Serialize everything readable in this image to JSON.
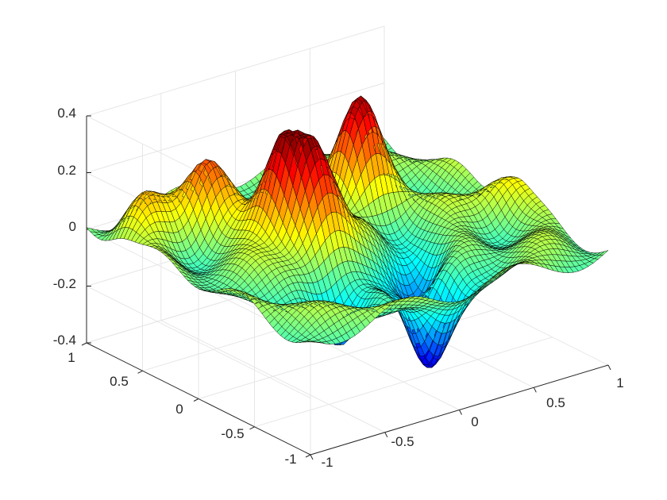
{
  "chart_data": {
    "type": "surface",
    "title": "",
    "xlabel": "",
    "ylabel": "",
    "zlabel": "",
    "xlim": [
      -1,
      1
    ],
    "ylim": [
      -1,
      1
    ],
    "zlim": [
      -0.4,
      0.4
    ],
    "x_ticks": [
      "-1",
      "-0.5",
      "0",
      "0.5",
      "1"
    ],
    "y_ticks": [
      "-1",
      "-0.5",
      "0",
      "0.5",
      "1"
    ],
    "z_ticks": [
      "-0.4",
      "-0.2",
      "0",
      "0.2",
      "0.4"
    ],
    "grid": true,
    "colormap": "jet",
    "edge_color": "#000000",
    "grid_resolution": 61,
    "surface_peaks": [
      {
        "x": -0.3,
        "y": 0.15,
        "z": 0.4
      },
      {
        "x": 0.35,
        "y": 0.35,
        "z": 0.33
      },
      {
        "x": -0.5,
        "y": 0.6,
        "z": 0.27
      },
      {
        "x": -0.25,
        "y": -0.05,
        "z": 0.3
      },
      {
        "x": 0.05,
        "y": -0.65,
        "z": -0.38
      },
      {
        "x": -0.4,
        "y": -0.45,
        "z": -0.26
      },
      {
        "x": 0.25,
        "y": -0.3,
        "z": -0.2
      },
      {
        "x": 0.45,
        "y": 0.65,
        "z": 0.15
      },
      {
        "x": 0.9,
        "y": -0.15,
        "z": 0.12
      },
      {
        "x": -0.85,
        "y": 0.7,
        "z": 0.12
      }
    ]
  }
}
